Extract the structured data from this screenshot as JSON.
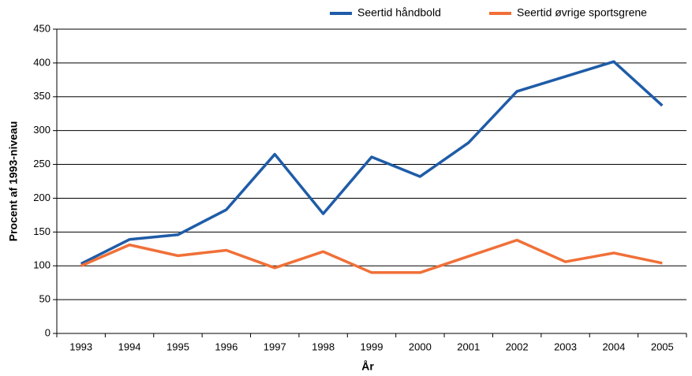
{
  "chart_data": {
    "type": "line",
    "x_label": "År",
    "y_label": "Procent af 1993-niveau",
    "categories": [
      "1993",
      "1994",
      "1995",
      "1996",
      "1997",
      "1998",
      "1999",
      "2000",
      "2001",
      "2002",
      "2003",
      "2004",
      "2005"
    ],
    "series": [
      {
        "name": "Seertid håndbold",
        "color": "#1f5ca8",
        "values": [
          103,
          139,
          146,
          183,
          265,
          177,
          261,
          232,
          282,
          358,
          380,
          402,
          337
        ]
      },
      {
        "name": "Seertid øvrige sportsgrene",
        "color": "#f07038",
        "values": [
          100,
          131,
          115,
          123,
          97,
          121,
          90,
          90,
          114,
          138,
          106,
          119,
          104
        ]
      }
    ],
    "ylim": [
      0,
      450
    ],
    "yticks": [
      0,
      50,
      100,
      150,
      200,
      250,
      300,
      350,
      400,
      450
    ],
    "grid": true,
    "legend": "top-right"
  }
}
